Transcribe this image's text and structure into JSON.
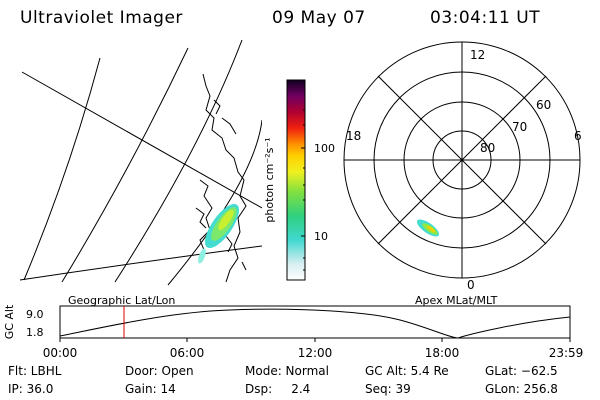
{
  "header": {
    "instrument": "Ultraviolet Imager",
    "date": "09 May 07",
    "time": "03:04:11 UT"
  },
  "colorbar": {
    "unit_label": "photon cm⁻²s⁻¹",
    "ticks": [
      "100",
      "10"
    ]
  },
  "polar_plot": {
    "mlt_labels": {
      "top": "12",
      "left": "18",
      "right": "6",
      "bottom": "0"
    },
    "lat_labels": [
      "60",
      "70",
      "80"
    ]
  },
  "map_labels": {
    "left": "Geographic Lat/Lon",
    "right": "Apex MLat/MLT"
  },
  "altitude_plot": {
    "ylabel": "GC Alt",
    "yticks": [
      "9.0",
      "1.8"
    ],
    "xticks": [
      "00:00",
      "06:00",
      "12:00",
      "18:00",
      "23:59"
    ],
    "marker_time": "03:04"
  },
  "info_rows": [
    [
      {
        "name": "flt",
        "text": "Flt: LBHL"
      },
      {
        "name": "door",
        "text": "Door: Open"
      },
      {
        "name": "mode",
        "text": "Mode: Normal"
      },
      {
        "name": "gc-alt",
        "text": "GC Alt: 5.4 Re"
      },
      {
        "name": "glat",
        "text": "GLat: −62.5"
      }
    ],
    [
      {
        "name": "ip",
        "text": "IP: 36.0"
      },
      {
        "name": "gain",
        "text": "Gain: 14"
      },
      {
        "name": "dsp",
        "text": "Dsp:     2.4"
      },
      {
        "name": "seq",
        "text": "Seq: 39"
      },
      {
        "name": "glon",
        "text": "GLon: 256.8"
      }
    ]
  ]
}
